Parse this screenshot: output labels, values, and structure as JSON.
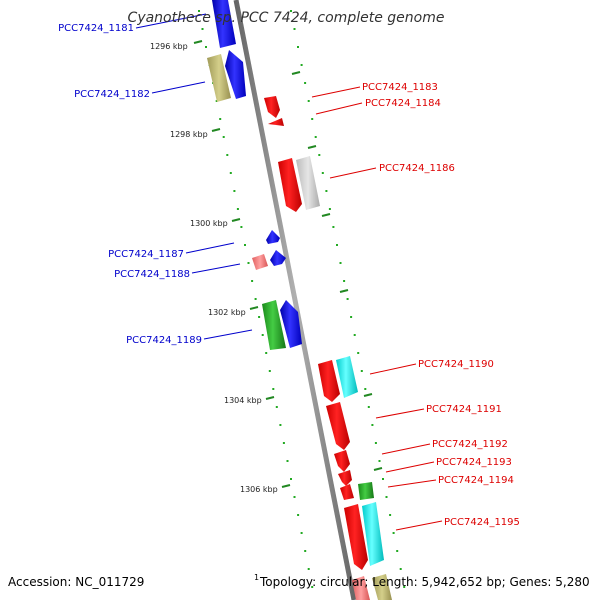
{
  "header": {
    "title": "Cyanothece sp. PCC 7424, complete genome"
  },
  "footer": {
    "accession": "Accession: NC_011729",
    "superscript": "1",
    "topology": "Topology: circular; Length: 5,942,652 bp; Genes: 5,280"
  },
  "colors": {
    "forward_label": "#0000cc",
    "reverse_label": "#dd0000",
    "backbone": "#888888",
    "tick": "#228822",
    "dots": "#22aa22"
  },
  "ticks": [
    {
      "label": "1296 kbp"
    },
    {
      "label": "1298 kbp"
    },
    {
      "label": "1300 kbp"
    },
    {
      "label": "1302 kbp"
    },
    {
      "label": "1304 kbp"
    },
    {
      "label": "1306 kbp"
    }
  ],
  "genes_forward": [
    {
      "label": "PCC7424_1181"
    },
    {
      "label": "PCC7424_1182"
    },
    {
      "label": "PCC7424_1187"
    },
    {
      "label": "PCC7424_1188"
    },
    {
      "label": "PCC7424_1189"
    }
  ],
  "genes_reverse": [
    {
      "label": "PCC7424_1183"
    },
    {
      "label": "PCC7424_1184"
    },
    {
      "label": "PCC7424_1186"
    },
    {
      "label": "PCC7424_1190"
    },
    {
      "label": "PCC7424_1191"
    },
    {
      "label": "PCC7424_1192"
    },
    {
      "label": "PCC7424_1193"
    },
    {
      "label": "PCC7424_1194"
    },
    {
      "label": "PCC7424_1195"
    }
  ]
}
